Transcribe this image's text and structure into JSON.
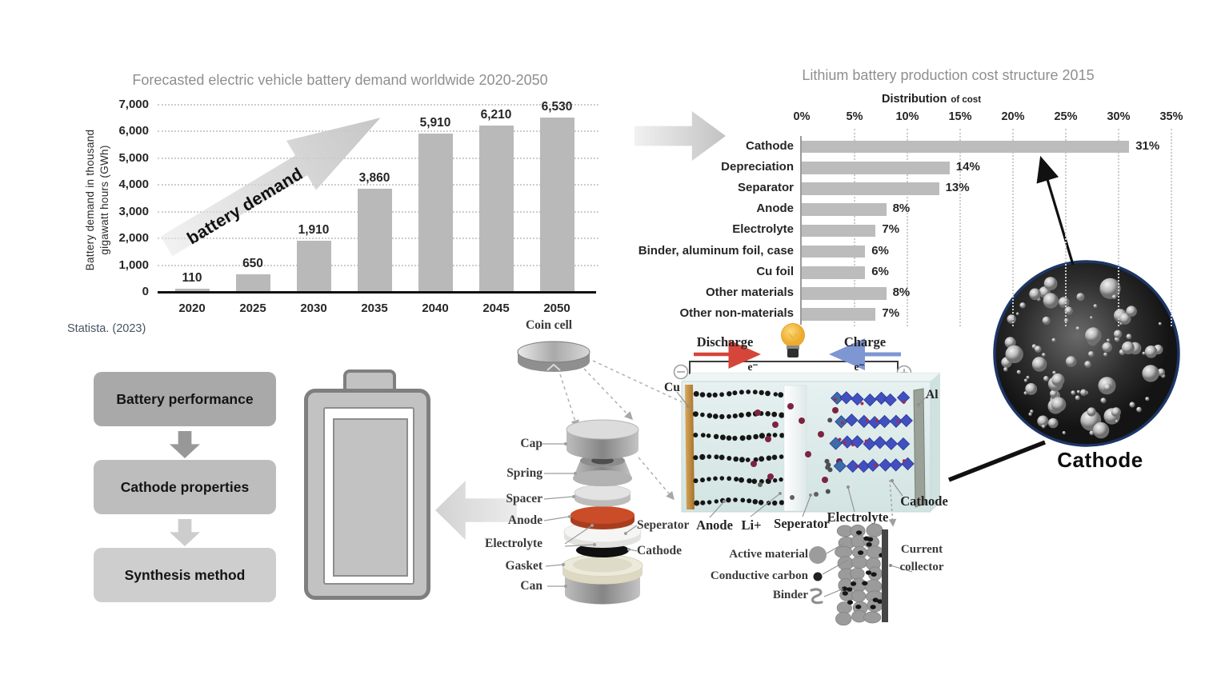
{
  "colors": {
    "bar_gray": "#b9b9b9",
    "title_gray": "#8f8f8f",
    "anode_orange": "#c84b27",
    "discharge_red": "#d6453a",
    "charge_blue": "#7e97d3",
    "bulb_yellow": "#f2c14b",
    "sem_border": "#1c3666",
    "crystal_blue": "#4150c0",
    "source_slate": "#475463"
  },
  "chart_data": [
    {
      "type": "bar",
      "title": "Forecasted electric vehicle battery demand worldwide 2020-2050",
      "categories": [
        "2020",
        "2025",
        "2030",
        "2035",
        "2040",
        "2045",
        "2050"
      ],
      "values": [
        110,
        650,
        1910,
        3860,
        5910,
        6210,
        6530
      ],
      "value_labels": [
        "110",
        "650",
        "1,910",
        "3,860",
        "5,910",
        "6,210",
        "6,530"
      ],
      "ylabel": "Battery demand in thousand gigawatt hours (GWh)",
      "ylabel_line1": "Battery demand in thousand",
      "ylabel_line2": "gigawatt hours (GWh)",
      "y_ticks": [
        "7,000",
        "6,000",
        "5,000",
        "4,000",
        "3,000",
        "2,000",
        "1,000",
        "0"
      ],
      "ylim": [
        0,
        7000
      ],
      "grid": "dotted-horizontal",
      "annotation": "battery demand",
      "source": "Statista. (2023)"
    },
    {
      "type": "bar-horizontal",
      "title": "Lithium battery production cost structure 2015",
      "xlabel": "Distribution of cost",
      "xlabel_main": "Distribution",
      "xlabel_small": "of cost",
      "categories": [
        "Cathode",
        "Depreciation",
        "Separator",
        "Anode",
        "Electrolyte",
        "Binder, aluminum foil, case",
        "Cu foil",
        "Other materials",
        "Other non-materials"
      ],
      "values": [
        31,
        14,
        13,
        8,
        7,
        6,
        6,
        8,
        7
      ],
      "value_labels": [
        "31%",
        "14%",
        "13%",
        "8%",
        "7%",
        "6%",
        "6%",
        "8%",
        "7%"
      ],
      "x_ticks": [
        "0%",
        "5%",
        "10%",
        "15%",
        "20%",
        "25%",
        "30%",
        "35%"
      ],
      "xlim": [
        0,
        35
      ],
      "grid": "dotted-vertical"
    }
  ],
  "flowchart": {
    "steps": [
      "Battery performance",
      "Cathode properties",
      "Synthesis method"
    ]
  },
  "coin_cell": {
    "title": "Coin cell",
    "left_labels": [
      "Cap",
      "Spring",
      "Spacer",
      "Anode",
      "Electrolyte",
      "Gasket",
      "Can"
    ],
    "right_labels": [
      "Seperator",
      "Cathode"
    ]
  },
  "schematic": {
    "discharge": "Discharge",
    "charge": "Charge",
    "electron": "e⁻",
    "cu": "Cu",
    "al": "Al",
    "anode": "Anode",
    "li_ion": "Li+",
    "separator": "Seperator",
    "electrolyte": "Electrolyte",
    "cathode": "Cathode"
  },
  "electrode_detail": {
    "active_material": "Active material",
    "conductive_carbon": "Conductive carbon",
    "binder": "Binder",
    "current_collector_line1": "Current",
    "current_collector_line2": "collector"
  },
  "sem": {
    "label": "Cathode"
  }
}
